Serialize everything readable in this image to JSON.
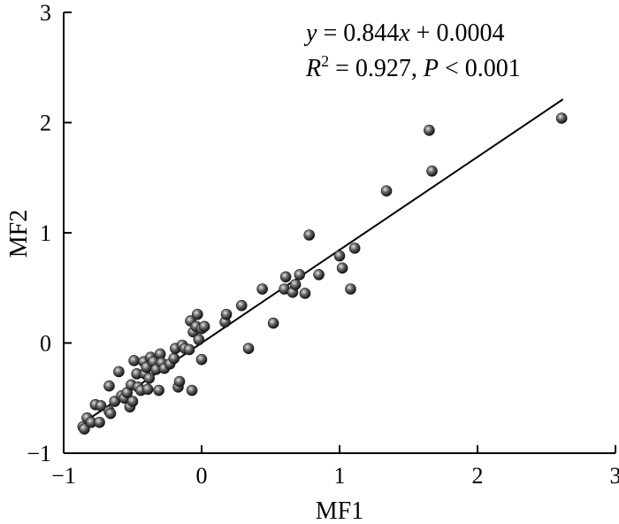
{
  "chart_data": {
    "type": "scatter",
    "title": "",
    "xlabel": "MF1",
    "ylabel": "MF2",
    "xlim": [
      -1,
      3
    ],
    "ylim": [
      -1,
      3
    ],
    "xticks": [
      "−1",
      "0",
      "1",
      "2",
      "3"
    ],
    "yticks": [
      "−1",
      "0",
      "1",
      "2",
      "3"
    ],
    "xtick_values": [
      -1,
      0,
      1,
      2,
      3
    ],
    "ytick_values": [
      -1,
      0,
      1,
      2,
      3
    ],
    "grid": false,
    "legend": "none",
    "colors": {
      "points": "#2b2b2b",
      "line": "#000000",
      "axes": "#000000"
    },
    "annotation": {
      "equation": {
        "y": "y",
        "eq": " = 0.844",
        "x": "x",
        "rest": " + 0.0004"
      },
      "stats": {
        "r": "R",
        "sup": "2",
        "r_val": " = 0.927, ",
        "p": "P",
        "p_val": " < 0.001"
      }
    },
    "fit_line": {
      "slope": 0.844,
      "intercept": 0.0004,
      "x_range": [
        -0.85,
        2.62
      ]
    },
    "series": [
      {
        "points": [
          [
            -0.86,
            -0.76
          ],
          [
            -0.85,
            -0.78
          ],
          [
            -0.83,
            -0.68
          ],
          [
            -0.8,
            -0.72
          ],
          [
            -0.77,
            -0.56
          ],
          [
            -0.74,
            -0.72
          ],
          [
            -0.73,
            -0.57
          ],
          [
            -0.67,
            -0.62
          ],
          [
            -0.66,
            -0.64
          ],
          [
            -0.67,
            -0.39
          ],
          [
            -0.63,
            -0.53
          ],
          [
            -0.6,
            -0.26
          ],
          [
            -0.58,
            -0.48
          ],
          [
            -0.56,
            -0.5
          ],
          [
            -0.54,
            -0.45
          ],
          [
            -0.52,
            -0.58
          ],
          [
            -0.51,
            -0.38
          ],
          [
            -0.5,
            -0.53
          ],
          [
            -0.49,
            -0.16
          ],
          [
            -0.47,
            -0.28
          ],
          [
            -0.46,
            -0.4
          ],
          [
            -0.44,
            -0.43
          ],
          [
            -0.42,
            -0.17
          ],
          [
            -0.41,
            -0.28
          ],
          [
            -0.4,
            -0.22
          ],
          [
            -0.39,
            -0.42
          ],
          [
            -0.38,
            -0.32
          ],
          [
            -0.37,
            -0.13
          ],
          [
            -0.35,
            -0.17
          ],
          [
            -0.33,
            -0.24
          ],
          [
            -0.31,
            -0.43
          ],
          [
            -0.3,
            -0.1
          ],
          [
            -0.29,
            -0.18
          ],
          [
            -0.27,
            -0.23
          ],
          [
            -0.23,
            -0.19
          ],
          [
            -0.2,
            -0.14
          ],
          [
            -0.19,
            -0.05
          ],
          [
            -0.17,
            -0.4
          ],
          [
            -0.16,
            -0.35
          ],
          [
            -0.14,
            -0.02
          ],
          [
            -0.12,
            -0.05
          ],
          [
            -0.09,
            -0.06
          ],
          [
            -0.08,
            0.2
          ],
          [
            -0.07,
            -0.43
          ],
          [
            -0.06,
            0.1
          ],
          [
            -0.04,
            0.15
          ],
          [
            -0.03,
            0.26
          ],
          [
            -0.02,
            0.03
          ],
          [
            0.0,
            0.13
          ],
          [
            0.0,
            -0.15
          ],
          [
            0.02,
            0.15
          ],
          [
            0.17,
            0.19
          ],
          [
            0.18,
            0.26
          ],
          [
            0.29,
            0.34
          ],
          [
            0.34,
            -0.05
          ],
          [
            0.44,
            0.49
          ],
          [
            0.52,
            0.18
          ],
          [
            0.6,
            0.49
          ],
          [
            0.61,
            0.6
          ],
          [
            0.66,
            0.46
          ],
          [
            0.68,
            0.53
          ],
          [
            0.71,
            0.62
          ],
          [
            0.75,
            0.45
          ],
          [
            0.78,
            0.98
          ],
          [
            0.85,
            0.62
          ],
          [
            1.0,
            0.79
          ],
          [
            1.02,
            0.68
          ],
          [
            1.08,
            0.49
          ],
          [
            1.11,
            0.86
          ],
          [
            1.34,
            1.38
          ],
          [
            1.65,
            1.93
          ],
          [
            1.67,
            1.56
          ],
          [
            2.61,
            2.04
          ]
        ]
      }
    ]
  }
}
